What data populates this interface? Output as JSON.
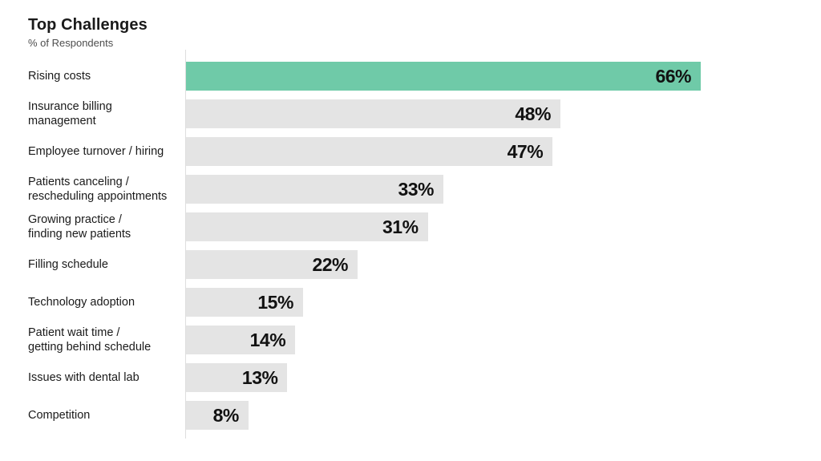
{
  "chart_data": {
    "type": "bar",
    "orientation": "horizontal",
    "title": "Top Challenges",
    "subtitle": "% of Respondents",
    "categories": [
      "Rising costs",
      "Insurance billing management",
      "Employee turnover / hiring",
      "Patients canceling / rescheduling appointments",
      "Growing practice / finding new patients",
      "Filling schedule",
      "Technology adoption",
      "Patient wait time / getting behind schedule",
      "Issues with dental lab",
      "Competition"
    ],
    "label_lines": [
      [
        "Rising costs"
      ],
      [
        "Insurance billing",
        "management"
      ],
      [
        "Employee turnover / hiring"
      ],
      [
        "Patients canceling /",
        "rescheduling appointments"
      ],
      [
        "Growing practice /",
        "finding new patients"
      ],
      [
        "Filling schedule"
      ],
      [
        "Technology adoption"
      ],
      [
        "Patient wait time /",
        "getting behind schedule"
      ],
      [
        "Issues with dental lab"
      ],
      [
        "Competition"
      ]
    ],
    "values": [
      66,
      48,
      47,
      33,
      31,
      22,
      15,
      14,
      13,
      8
    ],
    "value_labels": [
      "66%",
      "48%",
      "47%",
      "33%",
      "31%",
      "22%",
      "15%",
      "14%",
      "13%",
      "8%"
    ],
    "highlight_index": 0,
    "xlim": [
      0,
      66
    ],
    "grid": false,
    "legend": false,
    "colors": {
      "highlight": "#6FCAA8",
      "default": "#E4E4E4",
      "axis_line": "#DEDEDE",
      "title": "#1A1A1A",
      "subtitle": "#4D4D4D",
      "label": "#1A1A1A",
      "value": "#121212"
    }
  }
}
